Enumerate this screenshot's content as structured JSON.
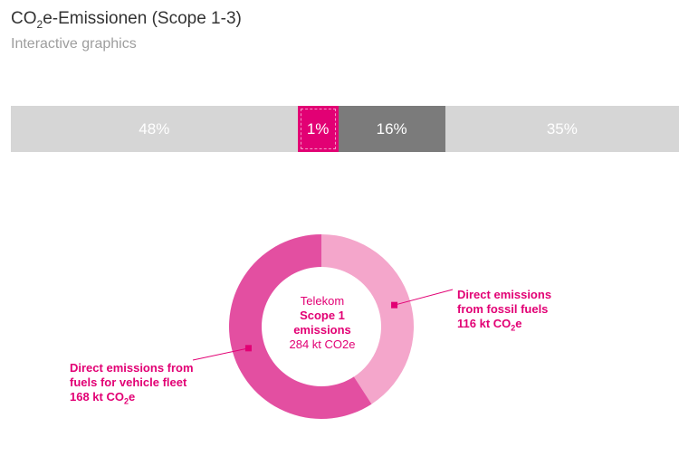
{
  "header": {
    "title_prefix": "CO",
    "title_sub": "2",
    "title_suffix": "e-Emissionen (Scope 1-3)",
    "subtitle": "Interactive graphics"
  },
  "colors": {
    "seg1": "#d6d6d6",
    "seg2": "#e20074",
    "seg3": "#7b7b7b",
    "seg4": "#d6d6d6",
    "donut_fossil": "#f4a6cb",
    "donut_vehicle": "#e34fa1",
    "accent": "#e20074"
  },
  "chart_data": [
    {
      "type": "bar",
      "orientation": "horizontal-stacked",
      "categories": [
        "48%",
        "1%",
        "16%",
        "35%"
      ],
      "values": [
        48,
        1,
        16,
        35
      ],
      "selected_index": 1
    },
    {
      "type": "pie",
      "center_label": {
        "line1": "Telekom",
        "line2": "Scope 1",
        "line3": "emissions",
        "line4": "284 kt CO2e"
      },
      "slices": [
        {
          "label": "Direct emissions from fossil fuels",
          "value": 116,
          "value_text": "116 kt CO",
          "unit_sub": "2",
          "unit_suffix": "e"
        },
        {
          "label": "Direct emissions from fuels for vehicle fleet",
          "value": 168,
          "value_text": "168 kt CO",
          "unit_sub": "2",
          "unit_suffix": "e"
        }
      ]
    }
  ]
}
